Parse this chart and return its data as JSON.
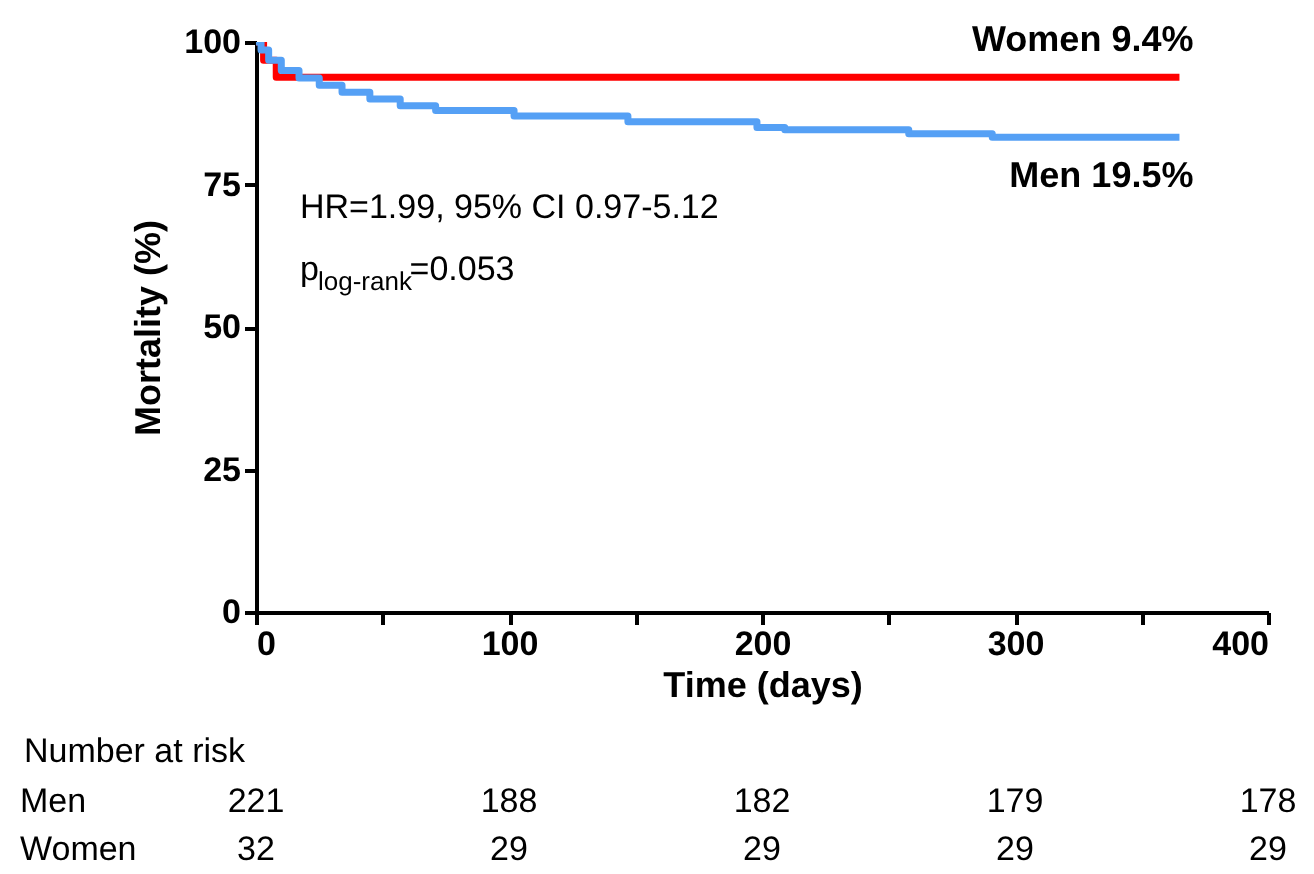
{
  "chart_data": {
    "type": "step",
    "xlabel": "Time (days)",
    "ylabel": "Mortality (%)",
    "xlim": [
      0,
      400
    ],
    "ylim": [
      0,
      100
    ],
    "xticks": [
      0,
      {
        "value": 50,
        "label": null
      },
      100,
      {
        "value": 150,
        "label": null
      },
      200,
      {
        "value": 250,
        "label": null
      },
      300,
      {
        "value": 350,
        "label": null
      },
      400
    ],
    "yticks": [
      0,
      25,
      50,
      75,
      100
    ],
    "grid": false,
    "line_style": "solid",
    "marker": "none",
    "series": [
      {
        "name": "Women 9.4%",
        "color": "#ff0000",
        "x": [
          0,
          3,
          8,
          365
        ],
        "values": [
          100,
          96.8,
          93.8,
          93.8
        ]
      },
      {
        "name": "Men 19.5%",
        "color": "#55a0f5",
        "x": [
          0,
          2,
          5,
          10,
          17,
          25,
          34,
          45,
          57,
          71,
          102,
          147,
          198,
          209,
          258,
          291,
          365
        ],
        "values": [
          100,
          98.6,
          96.8,
          95.0,
          93.7,
          92.4,
          91.2,
          90.0,
          88.8,
          88.0,
          87.0,
          86.0,
          85.0,
          84.6,
          83.9,
          83.3,
          83.3
        ]
      }
    ],
    "annotations": [
      "HR=1.99, 95% CI 0.97-5.12",
      "p$_{log-rank}$=0.053",
      "Number at risk",
      "Men",
      "221",
      "188",
      "182",
      "179",
      "178",
      "Women",
      "32",
      "29",
      "29",
      "29",
      "29"
    ]
  }
}
